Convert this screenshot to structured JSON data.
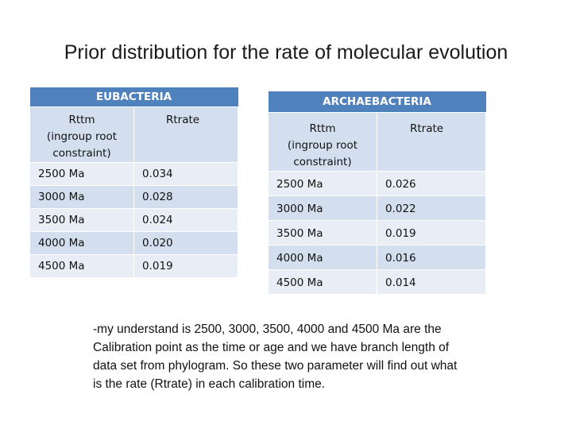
{
  "title": "Prior distribution for the rate of molecular evolution",
  "eubacteria": {
    "heading": "EUBACTERIA",
    "col1_header": "Rttm\n(ingroup root\nconstraint)",
    "col2_header": "Rtrate",
    "rows": [
      {
        "rttm": "2500 Ma",
        "rtrate": "0.034"
      },
      {
        "rttm": "3000 Ma",
        "rtrate": "0.028"
      },
      {
        "rttm": "3500 Ma",
        "rtrate": "0.024"
      },
      {
        "rttm": "4000 Ma",
        "rtrate": "0.020"
      },
      {
        "rttm": "4500 Ma",
        "rtrate": "0.019"
      }
    ]
  },
  "archaebacteria": {
    "heading": "ARCHAEBACTERIA",
    "col1_header": "Rttm\n(ingroup root\nconstraint)",
    "col2_header": "Rtrate",
    "rows": [
      {
        "rttm": "2500 Ma",
        "rtrate": "0.026"
      },
      {
        "rttm": "3000 Ma",
        "rtrate": "0.022"
      },
      {
        "rttm": "3500 Ma",
        "rtrate": "0.019"
      },
      {
        "rttm": "4000 Ma",
        "rtrate": "0.016"
      },
      {
        "rttm": "4500 Ma",
        "rtrate": "0.014"
      }
    ]
  },
  "note": "-my understand is 2500, 3000, 3500, 4000 and 4500 Ma are the Calibration point as the time or age and we have branch length of data set from phylogram. So these two parameter will  find out what is the rate (Rtrate) in each calibration time.",
  "colors": {
    "header_blue": "#4f81bd",
    "band_dark": "#d3dfee",
    "band_light": "#e9eef6"
  }
}
